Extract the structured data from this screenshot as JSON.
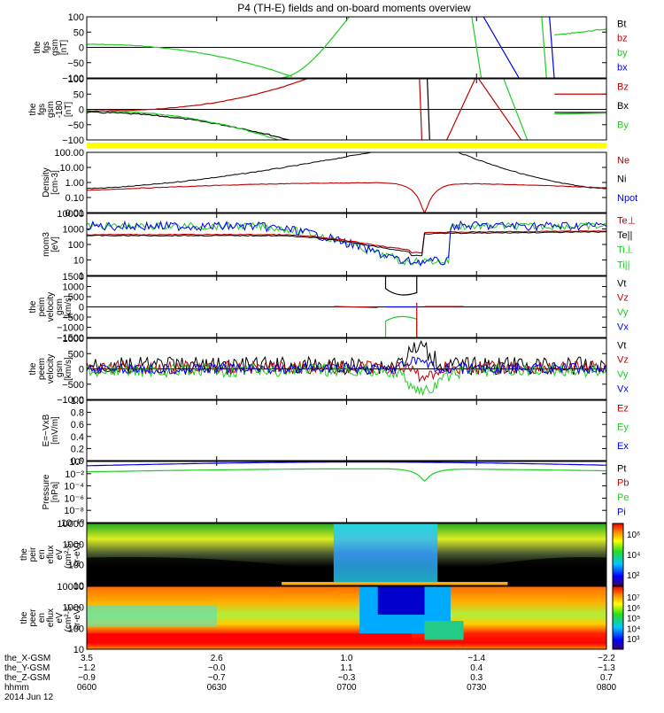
{
  "title": "P4 (TH-E) fields and on-board moments overview",
  "colors": {
    "black": "#000000",
    "red": "#c00000",
    "green": "#22cc22",
    "blue": "#0000ee",
    "yellow": "#ffff00"
  },
  "panels": [
    {
      "id": "fgs",
      "ylabel": [
        "the",
        "fgs",
        "gsm",
        "[nT]"
      ],
      "yticks": [
        "100",
        "50",
        "0",
        "−50",
        "−100"
      ],
      "legend": [
        {
          "text": "Bt",
          "color": "black"
        },
        {
          "text": "bz",
          "color": "red"
        },
        {
          "text": "by",
          "color": "green"
        },
        {
          "text": "bx",
          "color": "blue"
        }
      ]
    },
    {
      "id": "fgs2",
      "ylabel": [
        "the",
        "fgs",
        "gsm",
        "-180",
        "[nT]"
      ],
      "yticks": [
        "100",
        "50",
        "0",
        "−50",
        "−100"
      ],
      "legend": [
        {
          "text": "Bz",
          "color": "red"
        },
        {
          "text": "Bx",
          "color": "black"
        },
        {
          "text": "By",
          "color": "green"
        }
      ]
    },
    {
      "id": "density",
      "ylabel": [
        "Density",
        "[cm-3]"
      ],
      "yticks": [
        "100.00",
        "10.00",
        "1.00",
        "0.10",
        "0.01"
      ],
      "legend": [
        {
          "text": "Ne",
          "color": "red"
        },
        {
          "text": "Ni",
          "color": "black"
        },
        {
          "text": "Npot",
          "color": "blue"
        }
      ]
    },
    {
      "id": "temp",
      "ylabel": [
        "mom3",
        "[eV]"
      ],
      "yticks": [
        "10000",
        "1000",
        "100",
        "10",
        "1"
      ],
      "legend": [
        {
          "text": "Te⊥",
          "color": "red"
        },
        {
          "text": "Te||",
          "color": "black"
        },
        {
          "text": "Ti⊥",
          "color": "green"
        },
        {
          "text": "Ti||",
          "color": "green"
        }
      ]
    },
    {
      "id": "peim",
      "ylabel": [
        "the",
        "peim",
        "velocity",
        "gsm",
        "[km/s]"
      ],
      "yticks": [
        "1500",
        "1000",
        "500",
        "0",
        "−500",
        "−1000",
        "−1500"
      ],
      "legend": [
        {
          "text": "Vt",
          "color": "black"
        },
        {
          "text": "Vz",
          "color": "red"
        },
        {
          "text": "Vy",
          "color": "green"
        },
        {
          "text": "Vx",
          "color": "blue"
        }
      ]
    },
    {
      "id": "peem",
      "ylabel": [
        "the",
        "peem",
        "velocity",
        "gsm",
        "[km/s]"
      ],
      "yticks": [
        "1000",
        "500",
        "0",
        "−500",
        "−1000"
      ],
      "legend": [
        {
          "text": "Vt",
          "color": "black"
        },
        {
          "text": "Vz",
          "color": "red"
        },
        {
          "text": "Vy",
          "color": "green"
        },
        {
          "text": "Vx",
          "color": "blue"
        }
      ]
    },
    {
      "id": "efield",
      "ylabel": [
        "E=−VxB",
        "[mV/m]"
      ],
      "yticks": [
        "1.0",
        "0.8",
        "0.6",
        "0.4",
        "0.2",
        "0.0"
      ],
      "legend": [
        {
          "text": "Ez",
          "color": "red"
        },
        {
          "text": "Ey",
          "color": "green"
        },
        {
          "text": "Ex",
          "color": "blue"
        }
      ]
    },
    {
      "id": "pressure",
      "ylabel": [
        "Pressure",
        "[nPa]"
      ],
      "yticks": [
        "10⁰",
        "10⁻²",
        "10⁻⁴",
        "10⁻⁶",
        "10⁻⁸",
        "10⁻¹⁰"
      ],
      "legend": [
        {
          "text": "Pt",
          "color": "black"
        },
        {
          "text": "Pb",
          "color": "red"
        },
        {
          "text": "Pe",
          "color": "green"
        },
        {
          "text": "Pi",
          "color": "blue"
        }
      ]
    },
    {
      "id": "peir",
      "ylabel": [
        "the",
        "peir",
        "en",
        "eflux",
        "eV",
        "(cm²-s-",
        "sr-eV)"
      ],
      "yticks": [
        "10000",
        "1000",
        "100",
        "10"
      ],
      "cbar": [
        "10⁶",
        "10⁴",
        "10²"
      ]
    },
    {
      "id": "peer",
      "ylabel": [
        "the",
        "peer",
        "en",
        "eflux",
        "eV",
        "(cm²-s-",
        "sr-eV)"
      ],
      "yticks": [
        "10000",
        "1000",
        "100",
        "10"
      ],
      "cbar": [
        "10⁷",
        "10⁶",
        "10⁵",
        "10⁴",
        "10³"
      ]
    }
  ],
  "footer": {
    "rows": [
      {
        "label": "the_X-GSM",
        "values": [
          "3.5",
          "2.6",
          "1.0",
          "−1.4",
          "−2.2"
        ]
      },
      {
        "label": "the_Y-GSM",
        "values": [
          "−1.2",
          "−0.0",
          "1.1",
          "0.4",
          "−1.3"
        ]
      },
      {
        "label": "the_Z-GSM",
        "values": [
          "−0.9",
          "−0.7",
          "−0.3",
          "0.3",
          "0.7"
        ]
      },
      {
        "label": "hhmm",
        "values": [
          "0600",
          "0630",
          "0700",
          "0730",
          "0800"
        ]
      }
    ],
    "date": "2014 Jun 12"
  }
}
